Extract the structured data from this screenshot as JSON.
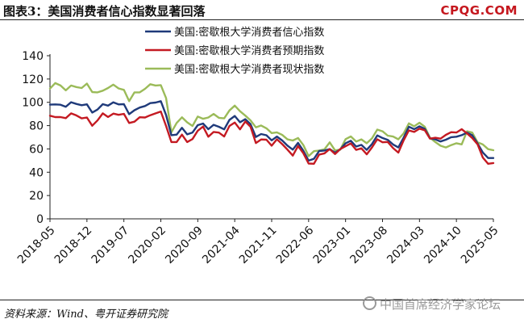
{
  "header": {
    "title": "图表3：美国消费者信心指数显著回落",
    "brand": "CPQG.COM"
  },
  "footer": {
    "source": "资料来源：Wind、粤开证券研究院",
    "watermark": "中国首席经济学家论坛"
  },
  "colors": {
    "confidence": "#1f3a7a",
    "expectations": "#c41a22",
    "current": "#9bbb59"
  },
  "chart_data": {
    "type": "line",
    "title": "",
    "xlabel": "",
    "ylabel": "",
    "ylim": [
      0,
      140
    ],
    "yticks": [
      0,
      20,
      40,
      60,
      80,
      100,
      120,
      140
    ],
    "xticks": [
      "2018-05",
      "2018-12",
      "2019-07",
      "2020-02",
      "2020-09",
      "2021-04",
      "2021-11",
      "2022-06",
      "2023-01",
      "2023-08",
      "2024-03",
      "2024-10",
      "2025-05"
    ],
    "grid": false,
    "legend_position": "top-center",
    "x": [
      "2018-05",
      "2018-06",
      "2018-07",
      "2018-08",
      "2018-09",
      "2018-10",
      "2018-11",
      "2018-12",
      "2019-01",
      "2019-02",
      "2019-03",
      "2019-04",
      "2019-05",
      "2019-06",
      "2019-07",
      "2019-08",
      "2019-09",
      "2019-10",
      "2019-11",
      "2019-12",
      "2020-01",
      "2020-02",
      "2020-03",
      "2020-04",
      "2020-05",
      "2020-06",
      "2020-07",
      "2020-08",
      "2020-09",
      "2020-10",
      "2020-11",
      "2020-12",
      "2021-01",
      "2021-02",
      "2021-03",
      "2021-04",
      "2021-05",
      "2021-06",
      "2021-07",
      "2021-08",
      "2021-09",
      "2021-10",
      "2021-11",
      "2021-12",
      "2022-01",
      "2022-02",
      "2022-03",
      "2022-04",
      "2022-05",
      "2022-06",
      "2022-07",
      "2022-08",
      "2022-09",
      "2022-10",
      "2022-11",
      "2022-12",
      "2023-01",
      "2023-02",
      "2023-03",
      "2023-04",
      "2023-05",
      "2023-06",
      "2023-07",
      "2023-08",
      "2023-09",
      "2023-10",
      "2023-11",
      "2023-12",
      "2024-01",
      "2024-02",
      "2024-03",
      "2024-04",
      "2024-05",
      "2024-06",
      "2024-07",
      "2024-08",
      "2024-09",
      "2024-10",
      "2024-11",
      "2024-12",
      "2025-01",
      "2025-02",
      "2025-03",
      "2025-04",
      "2025-05"
    ],
    "series": [
      {
        "name": "美国:密歇根大学消费者信心指数",
        "color_key": "confidence",
        "values": [
          98.0,
          98.2,
          97.9,
          96.2,
          100.1,
          98.6,
          97.5,
          98.3,
          91.2,
          93.8,
          98.4,
          97.2,
          100.0,
          98.2,
          98.4,
          89.8,
          93.2,
          95.5,
          96.8,
          99.3,
          99.8,
          101.0,
          89.1,
          71.8,
          72.3,
          78.1,
          72.5,
          74.1,
          80.4,
          81.8,
          76.9,
          80.7,
          79.0,
          76.8,
          84.9,
          88.3,
          82.9,
          85.5,
          81.2,
          70.3,
          72.8,
          71.7,
          67.4,
          70.6,
          67.2,
          62.8,
          59.4,
          65.2,
          58.4,
          50.0,
          51.5,
          58.2,
          58.6,
          59.9,
          56.8,
          59.7,
          64.9,
          67.0,
          62.0,
          63.5,
          59.2,
          64.2,
          71.6,
          69.4,
          67.8,
          63.8,
          61.3,
          69.7,
          79.0,
          76.9,
          79.4,
          77.2,
          69.1,
          68.2,
          66.4,
          67.9,
          70.1,
          70.5,
          71.8,
          74.0,
          71.7,
          64.7,
          57.0,
          52.2,
          52.2
        ]
      },
      {
        "name": "美国:密歇根大学消费者预期指数",
        "color_key": "expectations",
        "values": [
          88.5,
          87.3,
          87.3,
          86.4,
          90.5,
          88.8,
          86.2,
          87.0,
          79.9,
          84.4,
          90.5,
          87.4,
          90.3,
          89.3,
          90.1,
          82.3,
          83.4,
          87.2,
          87.0,
          88.9,
          90.5,
          92.1,
          79.7,
          65.9,
          65.9,
          72.3,
          65.9,
          68.5,
          75.6,
          79.2,
          70.5,
          74.6,
          74.0,
          70.7,
          79.7,
          82.7,
          76.8,
          83.5,
          79.0,
          65.1,
          68.1,
          67.9,
          62.8,
          68.3,
          64.1,
          59.4,
          54.3,
          62.5,
          56.3,
          47.5,
          47.3,
          55.2,
          56.2,
          59.9,
          55.6,
          59.9,
          62.3,
          64.7,
          59.2,
          60.5,
          55.4,
          61.3,
          68.3,
          65.7,
          66.0,
          60.7,
          56.8,
          67.4,
          75.9,
          74.6,
          77.4,
          76.0,
          68.8,
          69.6,
          68.8,
          72.1,
          74.4,
          74.1,
          76.9,
          73.3,
          69.3,
          64.0,
          52.6,
          47.3,
          47.9
        ]
      },
      {
        "name": "美国:密歇根大学消费者现状指数",
        "color_key": "current",
        "values": [
          111.8,
          116.5,
          114.4,
          110.3,
          114.4,
          113.1,
          112.3,
          116.1,
          108.8,
          108.5,
          110.0,
          112.3,
          115.2,
          111.9,
          110.7,
          101.0,
          108.5,
          108.5,
          111.6,
          115.5,
          114.4,
          114.8,
          103.7,
          74.3,
          82.3,
          87.1,
          82.8,
          79.7,
          87.8,
          85.9,
          87.0,
          90.0,
          86.7,
          86.2,
          93.0,
          97.2,
          92.4,
          88.6,
          84.5,
          78.5,
          80.1,
          77.7,
          73.6,
          74.2,
          72.0,
          68.2,
          67.2,
          69.4,
          63.3,
          53.8,
          58.1,
          58.6,
          59.7,
          65.6,
          58.8,
          59.4,
          68.4,
          70.7,
          66.3,
          68.2,
          64.9,
          69.0,
          76.6,
          75.1,
          71.4,
          70.6,
          68.3,
          73.3,
          81.9,
          79.4,
          82.5,
          79.0,
          69.6,
          65.9,
          62.7,
          61.3,
          63.3,
          64.9,
          63.9,
          75.1,
          74.0,
          65.7,
          63.8,
          59.8,
          58.9
        ]
      }
    ]
  }
}
